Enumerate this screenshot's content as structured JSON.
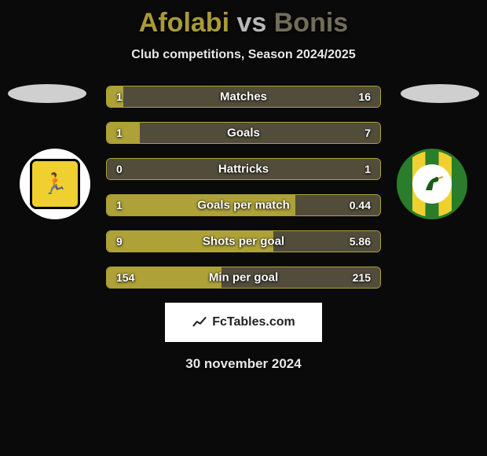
{
  "title": {
    "player1": "Afolabi",
    "vs": "vs",
    "player2": "Bonis"
  },
  "subtitle": "Club competitions, Season 2024/2025",
  "colors": {
    "player1": "#a99a39",
    "player1_fill": "#ada137",
    "player2": "#726d5a",
    "player2_fill": "#524d3b",
    "row_border": "#ada137"
  },
  "stats": [
    {
      "label": "Matches",
      "left_val": "1",
      "right_val": "16",
      "left_pct": 6,
      "right_pct": 94
    },
    {
      "label": "Goals",
      "left_val": "1",
      "right_val": "7",
      "left_pct": 12,
      "right_pct": 88
    },
    {
      "label": "Hattricks",
      "left_val": "0",
      "right_val": "1",
      "left_pct": 0,
      "right_pct": 100
    },
    {
      "label": "Goals per match",
      "left_val": "1",
      "right_val": "0.44",
      "left_pct": 69,
      "right_pct": 31
    },
    {
      "label": "Shots per goal",
      "left_val": "9",
      "right_val": "5.86",
      "left_pct": 61,
      "right_pct": 39
    },
    {
      "label": "Min per goal",
      "left_val": "154",
      "right_val": "215",
      "left_pct": 42,
      "right_pct": 58
    }
  ],
  "watermark": "FcTables.com",
  "date": "30 november 2024"
}
